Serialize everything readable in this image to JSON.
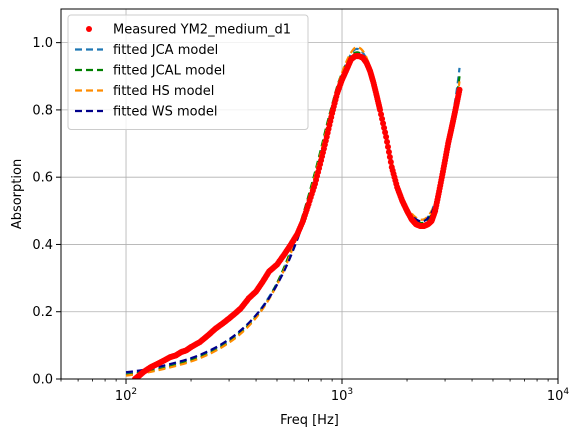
{
  "chart_data": {
    "type": "line",
    "title": "",
    "xlabel": "Freq [Hz]",
    "ylabel": "Absorption",
    "xscale": "log",
    "xlim": [
      50,
      10000
    ],
    "ylim": [
      0,
      1.1
    ],
    "grid": true,
    "legend_position": "top-left",
    "x_ticks": [
      {
        "value": 100,
        "base": "10",
        "exp": "2"
      },
      {
        "value": 1000,
        "base": "10",
        "exp": "3"
      },
      {
        "value": 10000,
        "base": "10",
        "exp": "4"
      }
    ],
    "y_ticks": [
      "0.0",
      "0.2",
      "0.4",
      "0.6",
      "0.8",
      "1.0"
    ],
    "series": [
      {
        "name": "Measured YM2_medium_d1",
        "style": "markers",
        "color": "#ff0000",
        "points": [
          [
            110,
            0.0
          ],
          [
            115,
            0.01
          ],
          [
            120,
            0.02
          ],
          [
            130,
            0.035
          ],
          [
            140,
            0.045
          ],
          [
            150,
            0.055
          ],
          [
            160,
            0.065
          ],
          [
            170,
            0.07
          ],
          [
            180,
            0.08
          ],
          [
            190,
            0.085
          ],
          [
            200,
            0.095
          ],
          [
            220,
            0.11
          ],
          [
            240,
            0.13
          ],
          [
            260,
            0.15
          ],
          [
            280,
            0.165
          ],
          [
            300,
            0.18
          ],
          [
            320,
            0.195
          ],
          [
            340,
            0.21
          ],
          [
            370,
            0.24
          ],
          [
            400,
            0.26
          ],
          [
            430,
            0.29
          ],
          [
            460,
            0.32
          ],
          [
            500,
            0.34
          ],
          [
            540,
            0.37
          ],
          [
            580,
            0.4
          ],
          [
            620,
            0.43
          ],
          [
            660,
            0.47
          ],
          [
            700,
            0.52
          ],
          [
            750,
            0.58
          ],
          [
            800,
            0.65
          ],
          [
            850,
            0.72
          ],
          [
            900,
            0.79
          ],
          [
            950,
            0.85
          ],
          [
            1000,
            0.89
          ],
          [
            1050,
            0.92
          ],
          [
            1100,
            0.95
          ],
          [
            1150,
            0.96
          ],
          [
            1200,
            0.96
          ],
          [
            1250,
            0.955
          ],
          [
            1300,
            0.94
          ],
          [
            1350,
            0.915
          ],
          [
            1400,
            0.88
          ],
          [
            1450,
            0.84
          ],
          [
            1500,
            0.8
          ],
          [
            1600,
            0.72
          ],
          [
            1700,
            0.63
          ],
          [
            1800,
            0.57
          ],
          [
            1900,
            0.53
          ],
          [
            2000,
            0.5
          ],
          [
            2100,
            0.475
          ],
          [
            2200,
            0.46
          ],
          [
            2300,
            0.455
          ],
          [
            2400,
            0.455
          ],
          [
            2500,
            0.46
          ],
          [
            2600,
            0.47
          ],
          [
            2700,
            0.5
          ],
          [
            2800,
            0.55
          ],
          [
            2900,
            0.6
          ],
          [
            3000,
            0.65
          ],
          [
            3100,
            0.7
          ],
          [
            3200,
            0.74
          ],
          [
            3300,
            0.78
          ],
          [
            3400,
            0.82
          ],
          [
            3500,
            0.86
          ]
        ]
      },
      {
        "name": "fitted JCA model",
        "style": "dashed",
        "color": "#1f77b4",
        "points": [
          [
            100,
            0.015
          ],
          [
            120,
            0.022
          ],
          [
            150,
            0.035
          ],
          [
            200,
            0.06
          ],
          [
            250,
            0.085
          ],
          [
            300,
            0.115
          ],
          [
            350,
            0.15
          ],
          [
            400,
            0.19
          ],
          [
            450,
            0.235
          ],
          [
            500,
            0.285
          ],
          [
            550,
            0.34
          ],
          [
            600,
            0.4
          ],
          [
            650,
            0.46
          ],
          [
            700,
            0.53
          ],
          [
            750,
            0.6
          ],
          [
            800,
            0.67
          ],
          [
            850,
            0.74
          ],
          [
            900,
            0.8
          ],
          [
            950,
            0.86
          ],
          [
            1000,
            0.905
          ],
          [
            1050,
            0.94
          ],
          [
            1100,
            0.965
          ],
          [
            1150,
            0.98
          ],
          [
            1200,
            0.98
          ],
          [
            1250,
            0.97
          ],
          [
            1300,
            0.95
          ],
          [
            1350,
            0.92
          ],
          [
            1400,
            0.885
          ],
          [
            1500,
            0.8
          ],
          [
            1600,
            0.715
          ],
          [
            1700,
            0.64
          ],
          [
            1800,
            0.58
          ],
          [
            1900,
            0.535
          ],
          [
            2000,
            0.505
          ],
          [
            2200,
            0.475
          ],
          [
            2400,
            0.47
          ],
          [
            2600,
            0.5
          ],
          [
            2800,
            0.56
          ],
          [
            3000,
            0.65
          ],
          [
            3200,
            0.75
          ],
          [
            3400,
            0.86
          ],
          [
            3500,
            0.925
          ]
        ]
      },
      {
        "name": "fitted JCAL model",
        "style": "dashed",
        "color": "#008000",
        "points": [
          [
            100,
            0.012
          ],
          [
            120,
            0.02
          ],
          [
            150,
            0.032
          ],
          [
            200,
            0.055
          ],
          [
            250,
            0.08
          ],
          [
            300,
            0.11
          ],
          [
            350,
            0.145
          ],
          [
            400,
            0.185
          ],
          [
            450,
            0.23
          ],
          [
            500,
            0.285
          ],
          [
            550,
            0.345
          ],
          [
            600,
            0.41
          ],
          [
            650,
            0.475
          ],
          [
            700,
            0.545
          ],
          [
            750,
            0.615
          ],
          [
            800,
            0.685
          ],
          [
            850,
            0.755
          ],
          [
            900,
            0.815
          ],
          [
            950,
            0.87
          ],
          [
            1000,
            0.91
          ],
          [
            1050,
            0.94
          ],
          [
            1100,
            0.96
          ],
          [
            1150,
            0.97
          ],
          [
            1200,
            0.97
          ],
          [
            1250,
            0.96
          ],
          [
            1300,
            0.94
          ],
          [
            1350,
            0.91
          ],
          [
            1400,
            0.875
          ],
          [
            1500,
            0.79
          ],
          [
            1600,
            0.71
          ],
          [
            1700,
            0.635
          ],
          [
            1800,
            0.575
          ],
          [
            1900,
            0.53
          ],
          [
            2000,
            0.5
          ],
          [
            2200,
            0.47
          ],
          [
            2400,
            0.465
          ],
          [
            2600,
            0.49
          ],
          [
            2800,
            0.55
          ],
          [
            3000,
            0.635
          ],
          [
            3200,
            0.73
          ],
          [
            3400,
            0.84
          ],
          [
            3500,
            0.9
          ]
        ]
      },
      {
        "name": "fitted HS model",
        "style": "dashed",
        "color": "#ff8c00",
        "points": [
          [
            100,
            0.01
          ],
          [
            120,
            0.017
          ],
          [
            150,
            0.03
          ],
          [
            200,
            0.052
          ],
          [
            250,
            0.078
          ],
          [
            300,
            0.108
          ],
          [
            350,
            0.142
          ],
          [
            400,
            0.182
          ],
          [
            450,
            0.228
          ],
          [
            500,
            0.28
          ],
          [
            550,
            0.337
          ],
          [
            600,
            0.4
          ],
          [
            650,
            0.465
          ],
          [
            700,
            0.535
          ],
          [
            750,
            0.605
          ],
          [
            800,
            0.675
          ],
          [
            850,
            0.745
          ],
          [
            900,
            0.81
          ],
          [
            950,
            0.865
          ],
          [
            1000,
            0.91
          ],
          [
            1050,
            0.945
          ],
          [
            1100,
            0.97
          ],
          [
            1150,
            0.985
          ],
          [
            1200,
            0.985
          ],
          [
            1250,
            0.975
          ],
          [
            1300,
            0.955
          ],
          [
            1350,
            0.925
          ],
          [
            1400,
            0.89
          ],
          [
            1500,
            0.805
          ],
          [
            1600,
            0.72
          ],
          [
            1700,
            0.645
          ],
          [
            1800,
            0.585
          ],
          [
            1900,
            0.54
          ],
          [
            2000,
            0.51
          ],
          [
            2200,
            0.48
          ],
          [
            2400,
            0.475
          ],
          [
            2600,
            0.5
          ],
          [
            2800,
            0.555
          ],
          [
            3000,
            0.64
          ],
          [
            3200,
            0.73
          ],
          [
            3400,
            0.83
          ],
          [
            3500,
            0.885
          ]
        ]
      },
      {
        "name": "fitted WS model",
        "style": "dashed",
        "color": "#00008b",
        "points": [
          [
            100,
            0.02
          ],
          [
            120,
            0.027
          ],
          [
            150,
            0.04
          ],
          [
            200,
            0.062
          ],
          [
            250,
            0.088
          ],
          [
            300,
            0.118
          ],
          [
            350,
            0.152
          ],
          [
            400,
            0.19
          ],
          [
            450,
            0.232
          ],
          [
            500,
            0.28
          ],
          [
            550,
            0.332
          ],
          [
            600,
            0.39
          ],
          [
            650,
            0.45
          ],
          [
            700,
            0.515
          ],
          [
            750,
            0.585
          ],
          [
            800,
            0.655
          ],
          [
            850,
            0.72
          ],
          [
            900,
            0.785
          ],
          [
            950,
            0.84
          ],
          [
            1000,
            0.885
          ],
          [
            1050,
            0.92
          ],
          [
            1100,
            0.945
          ],
          [
            1150,
            0.96
          ],
          [
            1200,
            0.965
          ],
          [
            1250,
            0.96
          ],
          [
            1300,
            0.945
          ],
          [
            1350,
            0.92
          ],
          [
            1400,
            0.89
          ],
          [
            1500,
            0.81
          ],
          [
            1600,
            0.725
          ],
          [
            1700,
            0.645
          ],
          [
            1800,
            0.58
          ],
          [
            1900,
            0.535
          ],
          [
            2000,
            0.505
          ],
          [
            2200,
            0.475
          ],
          [
            2400,
            0.47
          ],
          [
            2600,
            0.495
          ],
          [
            2800,
            0.55
          ],
          [
            3000,
            0.63
          ],
          [
            3200,
            0.72
          ],
          [
            3400,
            0.82
          ],
          [
            3500,
            0.87
          ]
        ]
      }
    ]
  }
}
